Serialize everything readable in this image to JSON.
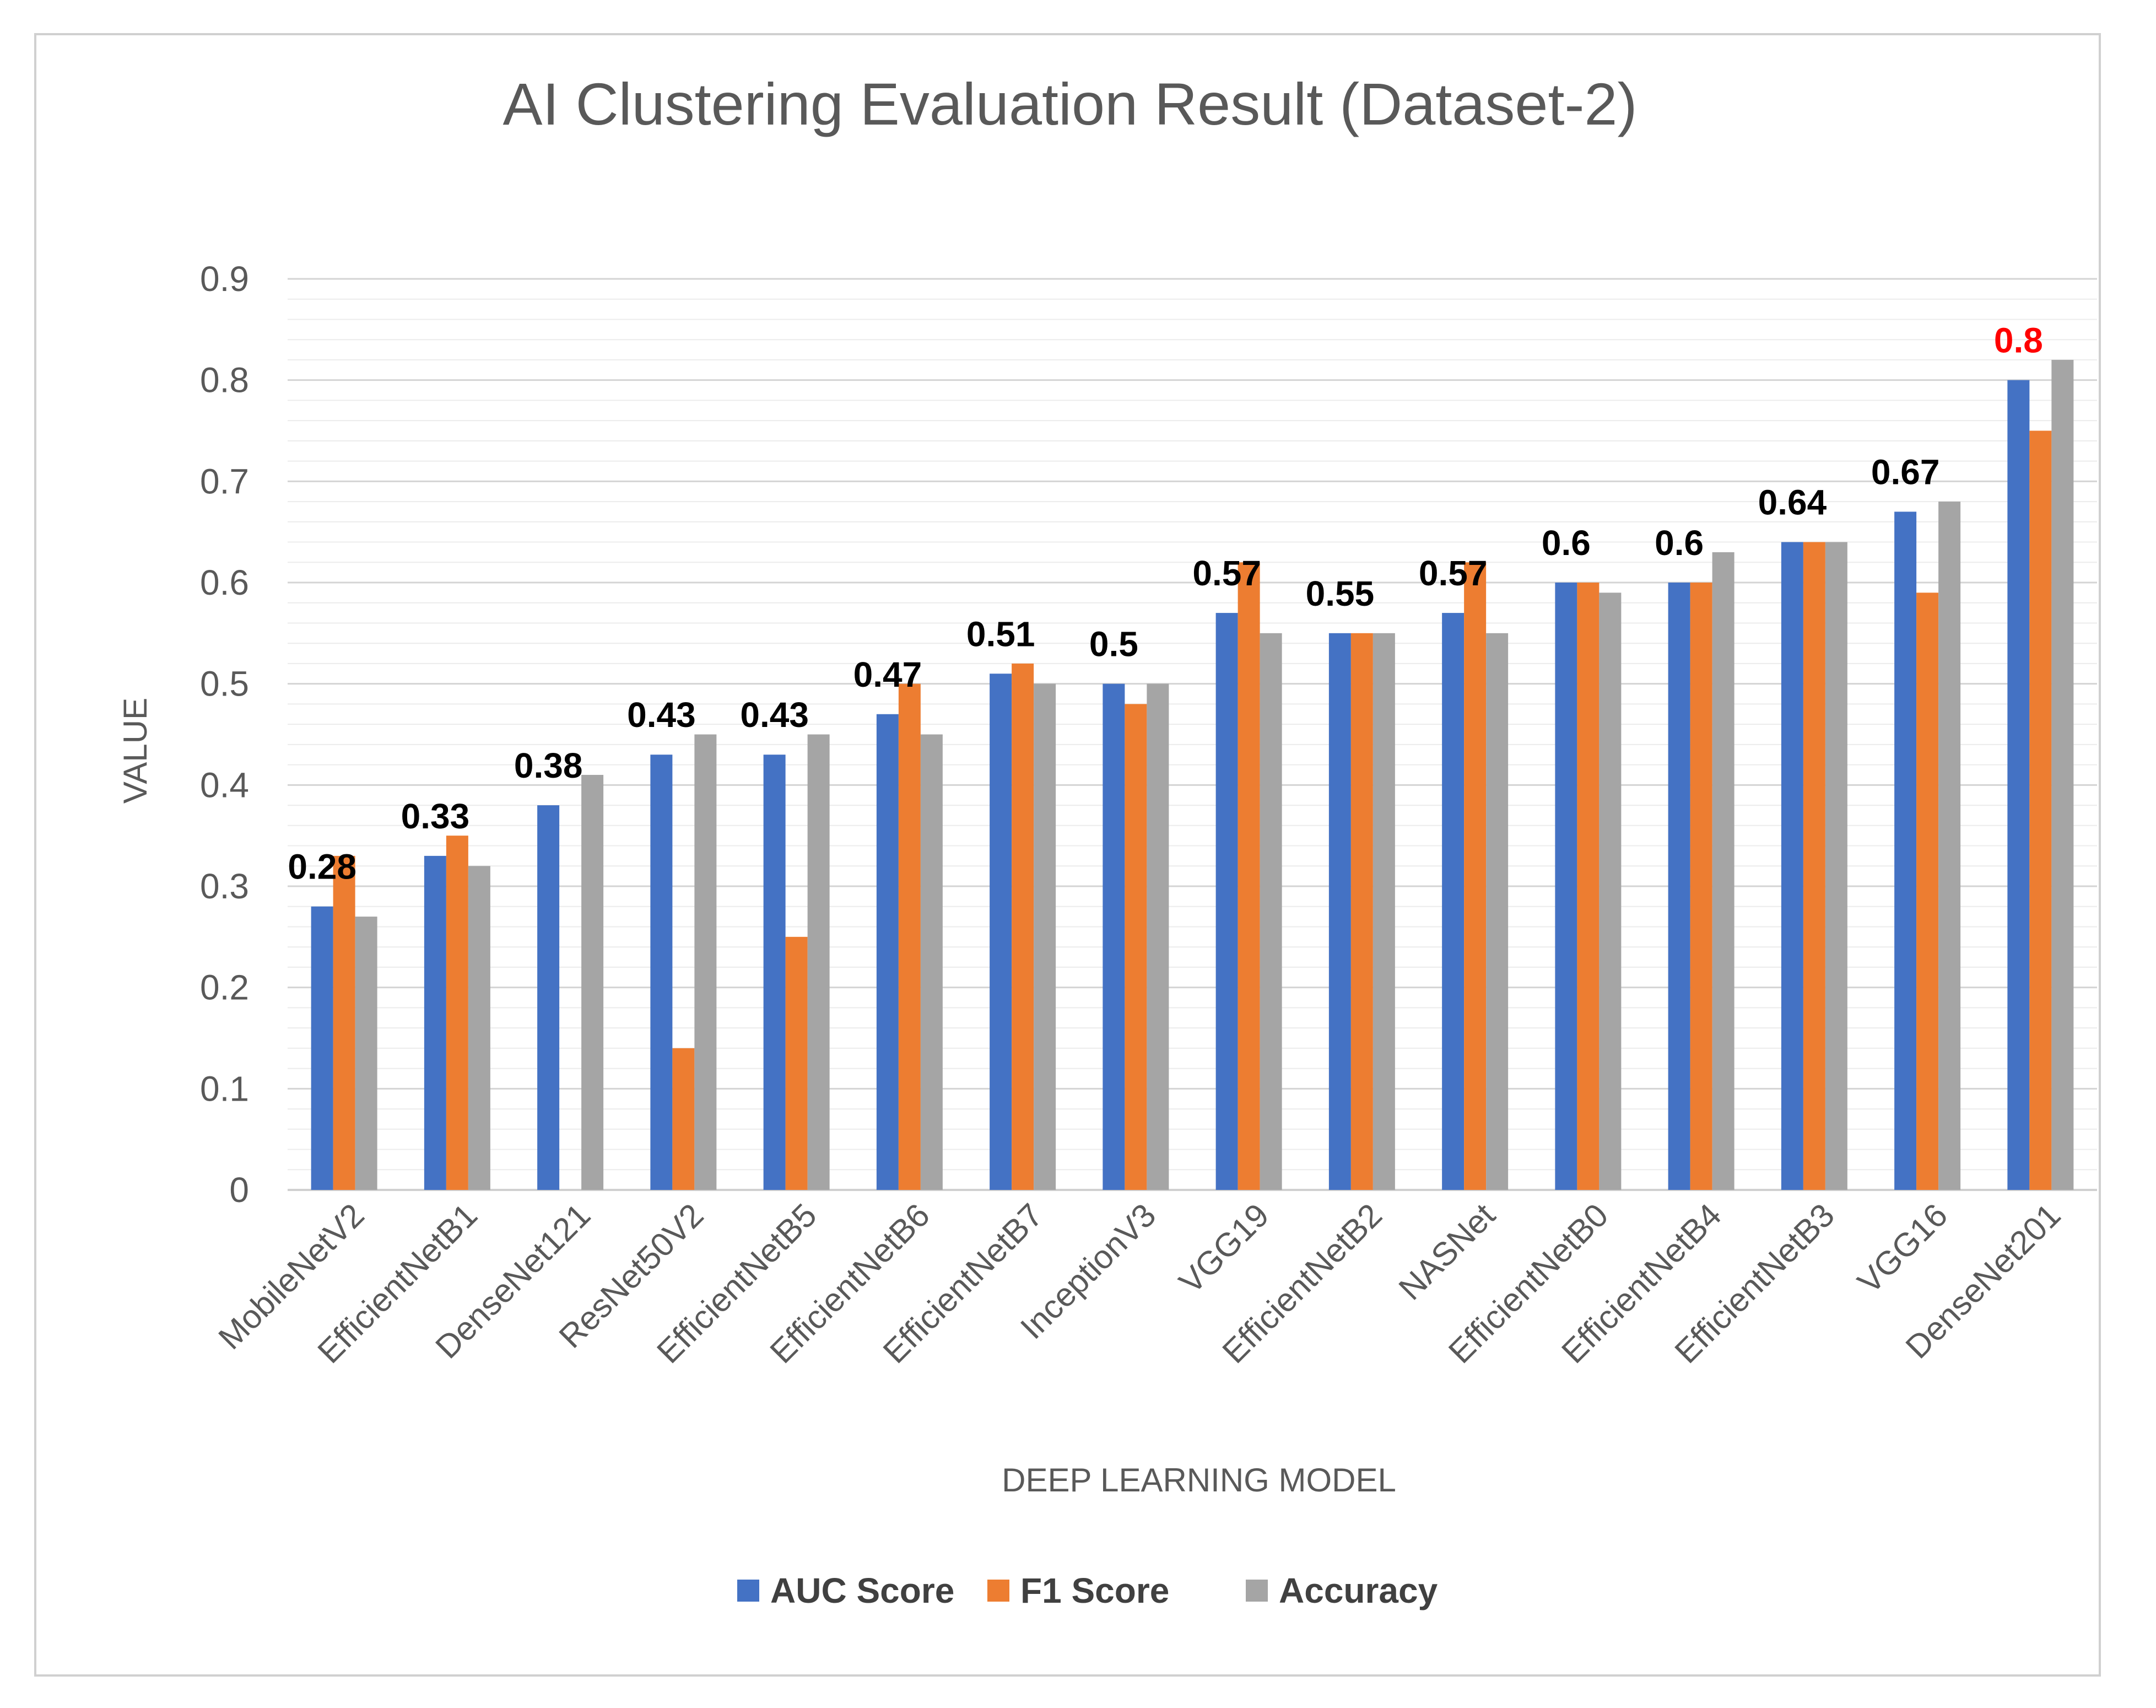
{
  "chart_data": {
    "type": "bar",
    "title": "AI Clustering Evaluation Result (Dataset-2)",
    "xlabel": "DEEP LEARNING MODEL",
    "ylabel": "VALUE",
    "ylim": [
      0,
      0.9
    ],
    "yticks": [
      "0",
      "0.1",
      "0.2",
      "0.3",
      "0.4",
      "0.5",
      "0.6",
      "0.7",
      "0.8",
      "0.9"
    ],
    "categories": [
      "MobileNetV2",
      "EfficientNetB1",
      "DenseNet121",
      "ResNet50V2",
      "EfficientNetB5",
      "EfficientNetB6",
      "EfficientNetB7",
      "InceptionV3",
      "VGG19",
      "EfficientNetB2",
      "NASNet",
      "EfficientNetB0",
      "EfficientNetB4",
      "EfficientNetB3",
      "VGG16",
      "DenseNet201"
    ],
    "series": [
      {
        "name": "AUC Score",
        "color": "#4472C4",
        "values": [
          0.28,
          0.33,
          0.38,
          0.43,
          0.43,
          0.47,
          0.51,
          0.5,
          0.57,
          0.55,
          0.57,
          0.6,
          0.6,
          0.64,
          0.67,
          0.8
        ]
      },
      {
        "name": "F1 Score",
        "color": "#ED7D31",
        "values": [
          0.33,
          0.35,
          0,
          0.14,
          0.25,
          0.5,
          0.52,
          0.48,
          0.62,
          0.55,
          0.62,
          0.6,
          0.6,
          0.64,
          0.59,
          0.75
        ]
      },
      {
        "name": "Accuracy",
        "color": "#A5A5A5",
        "values": [
          0.27,
          0.32,
          0.41,
          0.45,
          0.45,
          0.45,
          0.5,
          0.5,
          0.55,
          0.55,
          0.55,
          0.59,
          0.63,
          0.64,
          0.68,
          0.82
        ]
      }
    ],
    "data_labels": [
      "0.28",
      "0.33",
      "0.38",
      "0.43",
      "0.43",
      "0.47",
      "0.51",
      "0.5",
      "0.57",
      "0.55",
      "0.57",
      "0.6",
      "0.6",
      "0.64",
      "0.67",
      "0.8"
    ],
    "data_label_colors": [
      "#000000",
      "#000000",
      "#000000",
      "#000000",
      "#000000",
      "#000000",
      "#000000",
      "#000000",
      "#000000",
      "#000000",
      "#000000",
      "#000000",
      "#000000",
      "#000000",
      "#000000",
      "#FF0000"
    ],
    "grid": true,
    "legend_position": "bottom"
  }
}
